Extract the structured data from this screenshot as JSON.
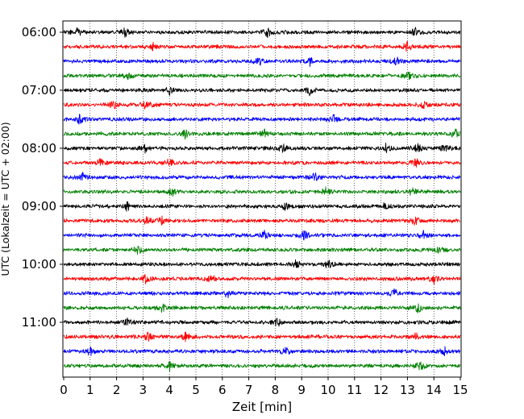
{
  "chart_data": {
    "type": "line",
    "title": "",
    "xlabel": "Zeit  [min]",
    "ylabel": "UTC (Lokalzeit = UTC + 02:00)",
    "xlim": [
      0,
      15
    ],
    "x_ticks": [
      0,
      1,
      2,
      3,
      4,
      5,
      6,
      7,
      8,
      9,
      10,
      11,
      12,
      13,
      14,
      15
    ],
    "y_tick_labels": [
      "06:00",
      "07:00",
      "08:00",
      "09:00",
      "10:00",
      "11:00"
    ],
    "grid": "vertical dotted",
    "trace_interval_min": 15,
    "first_trace": "06:00",
    "trace_count": 24,
    "trace_colors": [
      "#000000",
      "#ff0000",
      "#0000ff",
      "#008000"
    ],
    "traces": [
      {
        "start": "06:00",
        "color": "#000000",
        "events_min": [
          0.5,
          2.3,
          7.7,
          13.3
        ]
      },
      {
        "start": "06:15",
        "color": "#ff0000",
        "events_min": [
          3.4,
          13.0
        ]
      },
      {
        "start": "06:30",
        "color": "#0000ff",
        "events_min": [
          7.4,
          9.3,
          12.6
        ]
      },
      {
        "start": "06:45",
        "color": "#008000",
        "events_min": [
          2.4,
          13.1
        ]
      },
      {
        "start": "07:00",
        "color": "#000000",
        "events_min": [
          4.0,
          9.3
        ]
      },
      {
        "start": "07:15",
        "color": "#ff0000",
        "events_min": [
          1.9,
          3.1,
          13.6
        ]
      },
      {
        "start": "07:30",
        "color": "#0000ff",
        "events_min": [
          0.6,
          10.2
        ]
      },
      {
        "start": "07:45",
        "color": "#008000",
        "events_min": [
          4.6,
          7.6,
          14.8
        ]
      },
      {
        "start": "08:00",
        "color": "#000000",
        "events_min": [
          3.1,
          8.3,
          12.2,
          13.4,
          14.4
        ]
      },
      {
        "start": "08:15",
        "color": "#ff0000",
        "events_min": [
          1.4,
          4.0,
          13.3
        ]
      },
      {
        "start": "08:30",
        "color": "#0000ff",
        "events_min": [
          0.7,
          9.5
        ]
      },
      {
        "start": "08:45",
        "color": "#008000",
        "events_min": [
          4.1,
          9.9,
          13.2
        ]
      },
      {
        "start": "09:00",
        "color": "#000000",
        "events_min": [
          2.4,
          8.4,
          12.1
        ]
      },
      {
        "start": "09:15",
        "color": "#ff0000",
        "events_min": [
          3.1,
          3.7,
          13.3
        ]
      },
      {
        "start": "09:30",
        "color": "#0000ff",
        "events_min": [
          7.6,
          9.1,
          13.6
        ]
      },
      {
        "start": "09:45",
        "color": "#008000",
        "events_min": [
          2.8,
          14.2
        ]
      },
      {
        "start": "10:00",
        "color": "#000000",
        "events_min": [
          8.8,
          10.0
        ]
      },
      {
        "start": "10:15",
        "color": "#ff0000",
        "events_min": [
          3.1,
          5.6,
          14.0
        ]
      },
      {
        "start": "10:30",
        "color": "#0000ff",
        "events_min": [
          6.2,
          12.5
        ]
      },
      {
        "start": "10:45",
        "color": "#008000",
        "events_min": [
          3.7,
          13.4
        ]
      },
      {
        "start": "11:00",
        "color": "#000000",
        "events_min": [
          2.4,
          8.1
        ]
      },
      {
        "start": "11:15",
        "color": "#ff0000",
        "events_min": [
          3.2,
          4.6,
          13.3
        ]
      },
      {
        "start": "11:30",
        "color": "#0000ff",
        "events_min": [
          1.0,
          8.4,
          14.4
        ]
      },
      {
        "start": "11:45",
        "color": "#008000",
        "events_min": [
          4.0,
          13.5
        ]
      }
    ]
  }
}
